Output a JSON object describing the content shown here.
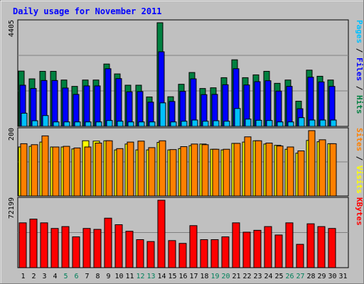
{
  "chart_data": {
    "type": "bar",
    "title": "Daily usage for November 2011",
    "days": [
      "1",
      "2",
      "3",
      "4",
      "5",
      "6",
      "7",
      "8",
      "9",
      "10",
      "11",
      "12",
      "13",
      "14",
      "15",
      "16",
      "17",
      "18",
      "19",
      "20",
      "21",
      "22",
      "23",
      "24",
      "25",
      "26",
      "27",
      "28",
      "29",
      "30",
      "31"
    ],
    "weekend_days": [
      "5",
      "6",
      "12",
      "13",
      "19",
      "20",
      "26",
      "27"
    ],
    "panels": [
      {
        "id": "hits-files-pages",
        "scale_max_label": "4405",
        "ylim": [
          0,
          4405
        ],
        "legend": [
          "Pages",
          "/",
          "Files",
          "/",
          "Hits"
        ],
        "series": [
          {
            "name": "Hits",
            "color": "#008040",
            "values": [
              2350,
              2020,
              2340,
              2340,
              1970,
              1700,
              1970,
              1970,
              2650,
              2230,
              1750,
              1750,
              1250,
              4405,
              1260,
              1790,
              2290,
              1610,
              1640,
              2070,
              2830,
              2070,
              2190,
              2340,
              1830,
              1970,
              1070,
              2390,
              2130,
              1970,
              0
            ]
          },
          {
            "name": "Files",
            "color": "#0000ff",
            "values": [
              1750,
              1610,
              1950,
              1950,
              1630,
              1360,
              1720,
              1720,
              2450,
              2030,
              1470,
              1480,
              1030,
              3170,
              1060,
              1490,
              2020,
              1350,
              1360,
              1770,
              2450,
              1760,
              1900,
              1940,
              1500,
              1700,
              750,
              2090,
              1890,
              1700,
              0
            ]
          },
          {
            "name": "Pages",
            "color": "#00c0ff",
            "values": [
              560,
              240,
              460,
              190,
              190,
              190,
              190,
              190,
              250,
              220,
              190,
              190,
              190,
              1000,
              190,
              220,
              270,
              220,
              240,
              220,
              760,
              310,
              260,
              250,
              190,
              190,
              370,
              270,
              270,
              270,
              0
            ]
          }
        ]
      },
      {
        "id": "visits-sites",
        "scale_max_label": "200",
        "ylim": [
          0,
          200
        ],
        "legend": [
          "Sites",
          "/",
          "Visits"
        ],
        "series": [
          {
            "name": "Visits",
            "color": "#ffff00",
            "values": [
              150,
              152,
              165,
              150,
              150,
              144,
              169,
              168,
              169,
              141,
              159,
              141,
              141,
              164,
              141,
              145,
              154,
              159,
              143,
              141,
              161,
              165,
              169,
              159,
              155,
              143,
              131,
              170,
              166,
              160,
              0
            ]
          },
          {
            "name": "Sites",
            "color": "#ff8000",
            "values": [
              160,
              157,
              184,
              150,
              152,
              147,
              150,
              162,
              169,
              145,
              165,
              168,
              148,
              169,
              142,
              151,
              159,
              157,
              143,
              143,
              161,
              181,
              169,
              162,
              153,
              150,
              138,
              200,
              172,
              160,
              0
            ]
          }
        ]
      },
      {
        "id": "kbytes",
        "scale_max_label": "72199",
        "ylim": [
          0,
          72199
        ],
        "legend": [
          "KBytes"
        ],
        "series": [
          {
            "name": "KBytes",
            "color": "#ff0000",
            "values": [
              48000,
              52000,
              48000,
              42000,
              44000,
              33000,
              42000,
              41000,
              53000,
              46000,
              39000,
              30000,
              28000,
              72199,
              29000,
              26000,
              45000,
              30000,
              30000,
              33000,
              48000,
              38000,
              40000,
              44000,
              35000,
              48000,
              25000,
              47000,
              44000,
              42000,
              0
            ]
          }
        ]
      }
    ]
  }
}
